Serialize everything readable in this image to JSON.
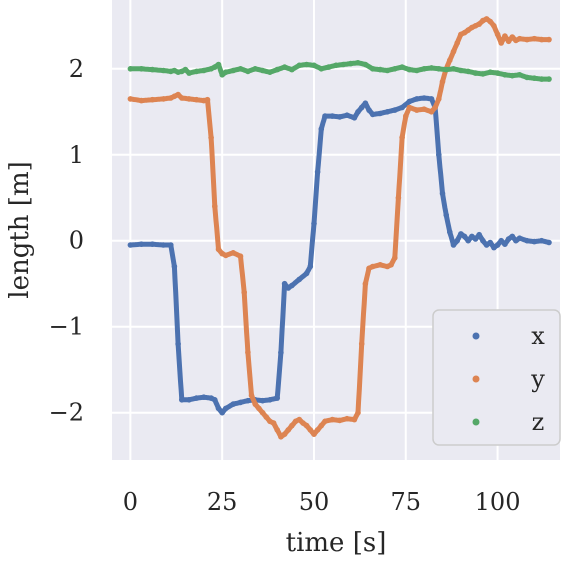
{
  "chart_data": {
    "type": "line",
    "xlabel": "time [s]",
    "ylabel": "length [m]",
    "xlim": [
      -5,
      117
    ],
    "ylim": [
      -2.55,
      2.8
    ],
    "grid": true,
    "legend_position": "bottom-right",
    "x_ticks": [
      0,
      25,
      50,
      75,
      100
    ],
    "x_tick_labels": [
      "0",
      "25",
      "50",
      "75",
      "100"
    ],
    "y_ticks": [
      -2,
      -1,
      0,
      1,
      2
    ],
    "y_tick_labels": [
      "−2",
      "−1",
      "0",
      "1",
      "2"
    ],
    "series": [
      {
        "name": "x",
        "color": "#4c72b0",
        "points": [
          [
            0,
            -0.05
          ],
          [
            3,
            -0.04
          ],
          [
            6,
            -0.04
          ],
          [
            9,
            -0.05
          ],
          [
            11,
            -0.05
          ],
          [
            12,
            -0.3
          ],
          [
            13,
            -1.2
          ],
          [
            14,
            -1.85
          ],
          [
            16,
            -1.85
          ],
          [
            18,
            -1.83
          ],
          [
            20,
            -1.82
          ],
          [
            22,
            -1.83
          ],
          [
            23,
            -1.85
          ],
          [
            24,
            -1.95
          ],
          [
            25,
            -2.0
          ],
          [
            26,
            -1.95
          ],
          [
            28,
            -1.9
          ],
          [
            30,
            -1.88
          ],
          [
            32,
            -1.86
          ],
          [
            34,
            -1.85
          ],
          [
            36,
            -1.86
          ],
          [
            38,
            -1.85
          ],
          [
            40,
            -1.83
          ],
          [
            41,
            -1.3
          ],
          [
            42,
            -0.5
          ],
          [
            43,
            -0.55
          ],
          [
            44,
            -0.52
          ],
          [
            46,
            -0.45
          ],
          [
            48,
            -0.38
          ],
          [
            49,
            -0.3
          ],
          [
            50,
            0.2
          ],
          [
            51,
            0.8
          ],
          [
            52,
            1.3
          ],
          [
            53,
            1.45
          ],
          [
            55,
            1.45
          ],
          [
            57,
            1.44
          ],
          [
            59,
            1.46
          ],
          [
            61,
            1.43
          ],
          [
            62,
            1.5
          ],
          [
            63,
            1.55
          ],
          [
            64,
            1.6
          ],
          [
            65,
            1.52
          ],
          [
            66,
            1.47
          ],
          [
            68,
            1.48
          ],
          [
            70,
            1.5
          ],
          [
            72,
            1.52
          ],
          [
            74,
            1.55
          ],
          [
            76,
            1.62
          ],
          [
            78,
            1.65
          ],
          [
            80,
            1.66
          ],
          [
            82,
            1.65
          ],
          [
            83,
            1.55
          ],
          [
            84,
            1.0
          ],
          [
            85,
            0.55
          ],
          [
            86,
            0.3
          ],
          [
            87,
            0.1
          ],
          [
            88,
            -0.05
          ],
          [
            89,
            0.0
          ],
          [
            90,
            0.08
          ],
          [
            91,
            0.05
          ],
          [
            92,
            0.0
          ],
          [
            93,
            0.05
          ],
          [
            94,
            0.02
          ],
          [
            95,
            0.07
          ],
          [
            96,
            0.0
          ],
          [
            97,
            -0.05
          ],
          [
            98,
            -0.02
          ],
          [
            99,
            -0.08
          ],
          [
            100,
            -0.05
          ],
          [
            101,
            0.0
          ],
          [
            102,
            -0.04
          ],
          [
            103,
            0.02
          ],
          [
            104,
            0.05
          ],
          [
            105,
            0.0
          ],
          [
            106,
            0.03
          ],
          [
            108,
            0.0
          ],
          [
            110,
            -0.01
          ],
          [
            112,
            0.0
          ],
          [
            114,
            -0.02
          ]
        ]
      },
      {
        "name": "y",
        "color": "#dd8452",
        "points": [
          [
            0,
            1.65
          ],
          [
            3,
            1.63
          ],
          [
            6,
            1.64
          ],
          [
            9,
            1.65
          ],
          [
            11,
            1.66
          ],
          [
            12,
            1.68
          ],
          [
            13,
            1.7
          ],
          [
            14,
            1.66
          ],
          [
            16,
            1.65
          ],
          [
            18,
            1.64
          ],
          [
            20,
            1.63
          ],
          [
            21,
            1.64
          ],
          [
            22,
            1.2
          ],
          [
            23,
            0.4
          ],
          [
            24,
            -0.1
          ],
          [
            25,
            -0.15
          ],
          [
            26,
            -0.17
          ],
          [
            28,
            -0.14
          ],
          [
            30,
            -0.18
          ],
          [
            31,
            -0.6
          ],
          [
            32,
            -1.3
          ],
          [
            33,
            -1.8
          ],
          [
            34,
            -1.9
          ],
          [
            35,
            -1.95
          ],
          [
            36,
            -2.0
          ],
          [
            37,
            -2.05
          ],
          [
            38,
            -2.1
          ],
          [
            39,
            -2.12
          ],
          [
            40,
            -2.2
          ],
          [
            41,
            -2.28
          ],
          [
            42,
            -2.25
          ],
          [
            43,
            -2.2
          ],
          [
            44,
            -2.15
          ],
          [
            45,
            -2.1
          ],
          [
            46,
            -2.08
          ],
          [
            47,
            -2.12
          ],
          [
            48,
            -2.15
          ],
          [
            49,
            -2.2
          ],
          [
            50,
            -2.25
          ],
          [
            51,
            -2.2
          ],
          [
            52,
            -2.15
          ],
          [
            53,
            -2.1
          ],
          [
            55,
            -2.08
          ],
          [
            57,
            -2.09
          ],
          [
            59,
            -2.07
          ],
          [
            61,
            -2.08
          ],
          [
            62,
            -2.0
          ],
          [
            63,
            -1.2
          ],
          [
            64,
            -0.5
          ],
          [
            65,
            -0.32
          ],
          [
            66,
            -0.3
          ],
          [
            68,
            -0.28
          ],
          [
            70,
            -0.3
          ],
          [
            71,
            -0.28
          ],
          [
            72,
            -0.2
          ],
          [
            73,
            0.5
          ],
          [
            74,
            1.2
          ],
          [
            75,
            1.45
          ],
          [
            76,
            1.55
          ],
          [
            78,
            1.52
          ],
          [
            80,
            1.53
          ],
          [
            82,
            1.5
          ],
          [
            83,
            1.55
          ],
          [
            84,
            1.65
          ],
          [
            85,
            1.85
          ],
          [
            86,
            2.0
          ],
          [
            87,
            2.1
          ],
          [
            88,
            2.2
          ],
          [
            89,
            2.3
          ],
          [
            90,
            2.4
          ],
          [
            91,
            2.42
          ],
          [
            92,
            2.45
          ],
          [
            93,
            2.48
          ],
          [
            94,
            2.5
          ],
          [
            95,
            2.52
          ],
          [
            96,
            2.56
          ],
          [
            97,
            2.58
          ],
          [
            98,
            2.55
          ],
          [
            99,
            2.5
          ],
          [
            100,
            2.4
          ],
          [
            101,
            2.3
          ],
          [
            102,
            2.38
          ],
          [
            103,
            2.32
          ],
          [
            104,
            2.37
          ],
          [
            105,
            2.33
          ],
          [
            106,
            2.35
          ],
          [
            108,
            2.34
          ],
          [
            110,
            2.35
          ],
          [
            112,
            2.34
          ],
          [
            114,
            2.34
          ]
        ]
      },
      {
        "name": "z",
        "color": "#55a868",
        "points": [
          [
            0,
            2.0
          ],
          [
            3,
            2.0
          ],
          [
            6,
            1.99
          ],
          [
            9,
            1.98
          ],
          [
            11,
            1.97
          ],
          [
            12,
            1.98
          ],
          [
            13,
            1.96
          ],
          [
            14,
            1.97
          ],
          [
            15,
            1.99
          ],
          [
            16,
            1.95
          ],
          [
            18,
            1.97
          ],
          [
            20,
            1.98
          ],
          [
            22,
            2.0
          ],
          [
            23,
            2.02
          ],
          [
            24,
            2.05
          ],
          [
            25,
            1.93
          ],
          [
            26,
            1.96
          ],
          [
            28,
            1.98
          ],
          [
            30,
            2.0
          ],
          [
            32,
            1.97
          ],
          [
            34,
            2.0
          ],
          [
            36,
            1.98
          ],
          [
            38,
            1.96
          ],
          [
            40,
            1.99
          ],
          [
            42,
            2.02
          ],
          [
            44,
            1.99
          ],
          [
            46,
            2.04
          ],
          [
            48,
            2.05
          ],
          [
            50,
            2.04
          ],
          [
            52,
            2.0
          ],
          [
            54,
            2.02
          ],
          [
            56,
            2.04
          ],
          [
            58,
            2.05
          ],
          [
            60,
            2.06
          ],
          [
            62,
            2.07
          ],
          [
            64,
            2.05
          ],
          [
            66,
            2.0
          ],
          [
            68,
            1.99
          ],
          [
            70,
            1.98
          ],
          [
            72,
            2.0
          ],
          [
            74,
            2.02
          ],
          [
            76,
            1.99
          ],
          [
            78,
            1.98
          ],
          [
            80,
            2.0
          ],
          [
            82,
            2.01
          ],
          [
            84,
            2.0
          ],
          [
            86,
            1.99
          ],
          [
            88,
            2.0
          ],
          [
            90,
            1.98
          ],
          [
            92,
            1.97
          ],
          [
            94,
            1.95
          ],
          [
            96,
            1.94
          ],
          [
            98,
            1.96
          ],
          [
            100,
            1.95
          ],
          [
            102,
            1.93
          ],
          [
            104,
            1.92
          ],
          [
            106,
            1.93
          ],
          [
            108,
            1.9
          ],
          [
            110,
            1.89
          ],
          [
            112,
            1.88
          ],
          [
            114,
            1.88
          ]
        ]
      }
    ]
  }
}
